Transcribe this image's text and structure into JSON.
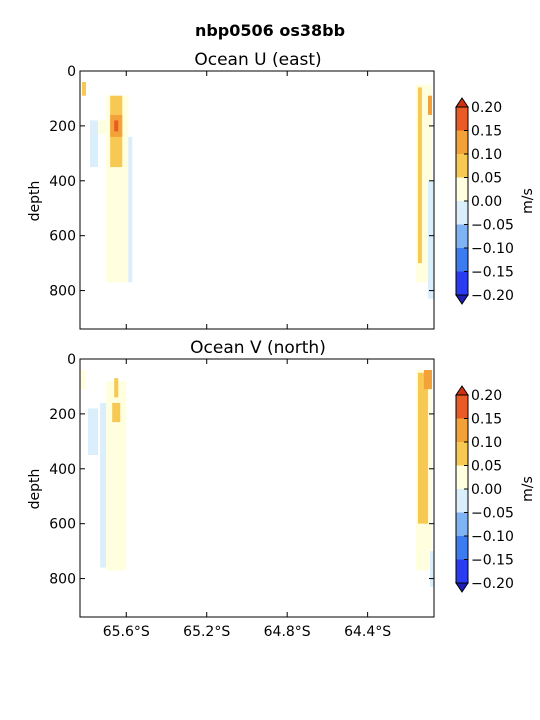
{
  "figure_title": "nbp0506 os38bb",
  "chart_data": [
    {
      "type": "heatmap",
      "title": "Ocean U (east)",
      "ylabel": "depth",
      "xlabel": "",
      "x_ticklabels": [
        "65.6°S",
        "65.2°S",
        "64.8°S",
        "64.4°S"
      ],
      "show_x_ticklabels": false,
      "x_ticks_lat": [
        -65.6,
        -65.2,
        -64.8,
        -64.4
      ],
      "xlim_lat": [
        -65.83,
        -64.07
      ],
      "ylim": [
        940,
        0
      ],
      "y_ticks": [
        0,
        200,
        400,
        600,
        800
      ],
      "colorbar": {
        "label": "m/s",
        "levels": [
          -0.2,
          -0.15,
          -0.1,
          -0.05,
          0.0,
          0.05,
          0.1,
          0.15,
          0.2
        ],
        "tick_labels": [
          "−0.20",
          "−0.15",
          "−0.10",
          "−0.05",
          "0.00",
          "0.05",
          "0.10",
          "0.15",
          "0.20"
        ],
        "colors": [
          "#2a3cf0",
          "#3c7cf0",
          "#7fb3f4",
          "#dbeefb",
          "#ffffe0",
          "#f7c852",
          "#f3a23a",
          "#ea5a24"
        ],
        "under_color": "#1f1fb4",
        "over_color": "#d03010"
      },
      "patches": [
        {
          "lat": [
            -65.82,
            -65.8
          ],
          "depth": [
            40,
            90
          ],
          "value": 0.07
        },
        {
          "lat": [
            -65.78,
            -65.7
          ],
          "depth": [
            180,
            230
          ],
          "value": 0.02
        },
        {
          "lat": [
            -65.78,
            -65.74
          ],
          "depth": [
            180,
            350
          ],
          "value": -0.02
        },
        {
          "lat": [
            -65.7,
            -65.59
          ],
          "depth": [
            90,
            770
          ],
          "value": 0.02
        },
        {
          "lat": [
            -65.68,
            -65.62
          ],
          "depth": [
            90,
            350
          ],
          "value": 0.07
        },
        {
          "lat": [
            -65.68,
            -65.62
          ],
          "depth": [
            160,
            240
          ],
          "value": 0.11
        },
        {
          "lat": [
            -65.66,
            -65.64
          ],
          "depth": [
            180,
            220
          ],
          "value": 0.16
        },
        {
          "lat": [
            -65.59,
            -65.57
          ],
          "depth": [
            240,
            770
          ],
          "value": -0.03
        },
        {
          "lat": [
            -64.16,
            -64.08
          ],
          "depth": [
            50,
            770
          ],
          "value": 0.02
        },
        {
          "lat": [
            -64.15,
            -64.13
          ],
          "depth": [
            60,
            700
          ],
          "value": 0.07
        },
        {
          "lat": [
            -64.1,
            -64.08
          ],
          "depth": [
            90,
            160
          ],
          "value": 0.11
        },
        {
          "lat": [
            -64.1,
            -64.07
          ],
          "depth": [
            400,
            830
          ],
          "value": -0.03
        }
      ]
    },
    {
      "type": "heatmap",
      "title": "Ocean V (north)",
      "ylabel": "depth",
      "xlabel": "",
      "x_ticklabels": [
        "65.6°S",
        "65.2°S",
        "64.8°S",
        "64.4°S"
      ],
      "show_x_ticklabels": true,
      "x_ticks_lat": [
        -65.6,
        -65.2,
        -64.8,
        -64.4
      ],
      "xlim_lat": [
        -65.83,
        -64.07
      ],
      "ylim": [
        940,
        0
      ],
      "y_ticks": [
        0,
        200,
        400,
        600,
        800
      ],
      "colorbar": {
        "label": "m/s",
        "levels": [
          -0.2,
          -0.15,
          -0.1,
          -0.05,
          0.0,
          0.05,
          0.1,
          0.15,
          0.2
        ],
        "tick_labels": [
          "−0.20",
          "−0.15",
          "−0.10",
          "−0.05",
          "0.00",
          "0.05",
          "0.10",
          "0.15",
          "0.20"
        ],
        "colors": [
          "#2a3cf0",
          "#3c7cf0",
          "#7fb3f4",
          "#dbeefb",
          "#ffffe0",
          "#f7c852",
          "#f3a23a",
          "#ea5a24"
        ],
        "under_color": "#1f1fb4",
        "over_color": "#d03010"
      },
      "patches": [
        {
          "lat": [
            -65.83,
            -65.8
          ],
          "depth": [
            40,
            110
          ],
          "value": 0.02
        },
        {
          "lat": [
            -65.79,
            -65.74
          ],
          "depth": [
            180,
            350
          ],
          "value": -0.02
        },
        {
          "lat": [
            -65.73,
            -65.7
          ],
          "depth": [
            160,
            760
          ],
          "value": -0.02
        },
        {
          "lat": [
            -65.7,
            -65.6
          ],
          "depth": [
            80,
            770
          ],
          "value": 0.02
        },
        {
          "lat": [
            -65.67,
            -65.63
          ],
          "depth": [
            160,
            230
          ],
          "value": 0.07
        },
        {
          "lat": [
            -65.66,
            -65.64
          ],
          "depth": [
            70,
            140
          ],
          "value": 0.07
        },
        {
          "lat": [
            -64.16,
            -64.08
          ],
          "depth": [
            40,
            770
          ],
          "value": 0.02
        },
        {
          "lat": [
            -64.15,
            -64.1
          ],
          "depth": [
            50,
            600
          ],
          "value": 0.07
        },
        {
          "lat": [
            -64.12,
            -64.08
          ],
          "depth": [
            40,
            110
          ],
          "value": 0.11
        },
        {
          "lat": [
            -64.09,
            -64.07
          ],
          "depth": [
            700,
            830
          ],
          "value": -0.03
        }
      ]
    }
  ]
}
